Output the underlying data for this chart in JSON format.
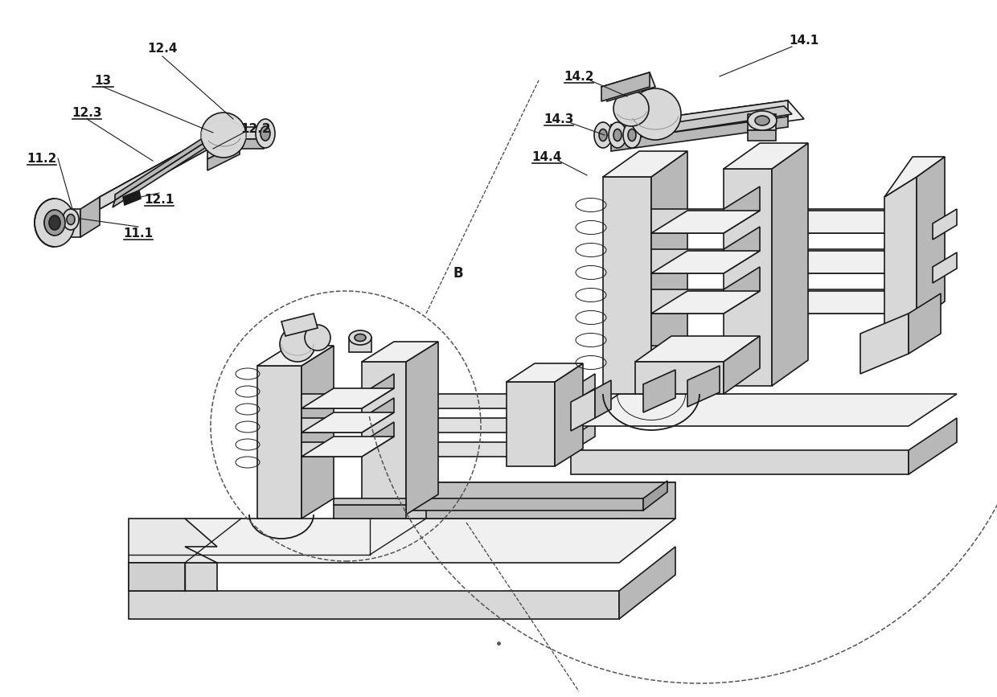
{
  "bg_color": "#ffffff",
  "line_color": "#1a1a1a",
  "fig_width": 12.4,
  "fig_height": 8.67,
  "dpi": 100,
  "lw_main": 1.3,
  "lw_thin": 0.7,
  "lw_thick": 2.0,
  "face_light": "#f0f0f0",
  "face_mid": "#d8d8d8",
  "face_dark": "#b8b8b8",
  "face_darker": "#999999",
  "face_black": "#1a1a1a"
}
